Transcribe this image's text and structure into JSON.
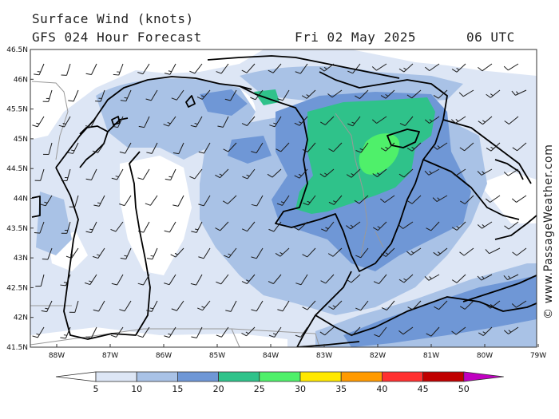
{
  "header": {
    "title": "Surface Wind (knots)",
    "model": "GFS 024 Hour Forecast",
    "date": "Fri 02 May 2025",
    "time": "06 UTC"
  },
  "credit": "© www.PassageWeather.com",
  "axes": {
    "lat_labels": [
      "46.5N",
      "46N",
      "45.5N",
      "45N",
      "44.5N",
      "44N",
      "43.5N",
      "43N",
      "42.5N",
      "42N",
      "41.5N"
    ],
    "lon_labels": [
      "88W",
      "87W",
      "86W",
      "85W",
      "84W",
      "83W",
      "82W",
      "81W",
      "80W",
      "79W"
    ]
  },
  "legend": {
    "ticks": [
      "5",
      "10",
      "15",
      "20",
      "25",
      "30",
      "35",
      "40",
      "45",
      "50"
    ],
    "colors": [
      "#ffffff",
      "#dde6f5",
      "#a9c2e6",
      "#6f97d6",
      "#2fc28a",
      "#4ff06a",
      "#ffe800",
      "#ff9a00",
      "#ff3030",
      "#c00000",
      "#c000c0"
    ]
  },
  "map": {
    "region": "Great Lakes",
    "field": "wind speed",
    "colors": {
      "lake_line": "#000000",
      "border_line": "#999999"
    }
  }
}
